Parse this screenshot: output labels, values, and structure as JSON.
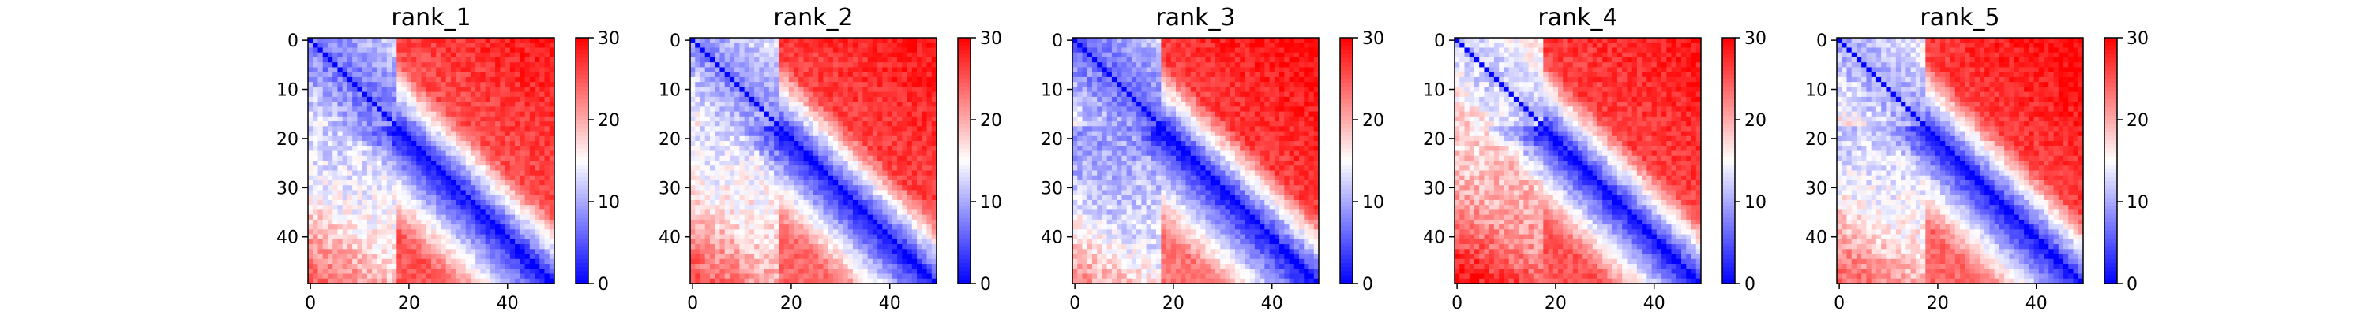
{
  "chart_data": [
    {
      "type": "heatmap",
      "title": "rank_1",
      "matrix_size": 50,
      "x_ticks": [
        0,
        20,
        40
      ],
      "y_ticks": [
        0,
        10,
        20,
        30,
        40
      ],
      "colorbar": {
        "ticks": [
          0,
          10,
          20,
          30
        ],
        "vmin": 0,
        "vmax": 30,
        "cmap": "bwr"
      },
      "block_boundary": 18,
      "values": {
        "diagonal": 0,
        "near_diag_slope": 1.15,
        "nterm_block_upper": 6.5,
        "upper_far": 24,
        "upper_far_max": 29,
        "lower_near": 12,
        "lower_far": 25
      }
    },
    {
      "type": "heatmap",
      "title": "rank_2",
      "matrix_size": 50,
      "x_ticks": [
        0,
        20,
        40
      ],
      "y_ticks": [
        0,
        10,
        20,
        30,
        40
      ],
      "colorbar": {
        "ticks": [
          0,
          10,
          20,
          30
        ],
        "vmin": 0,
        "vmax": 30,
        "cmap": "bwr"
      },
      "block_boundary": 18,
      "values": {
        "diagonal": 0,
        "near_diag_slope": 1.2,
        "nterm_block_upper": 8,
        "upper_far": 25,
        "upper_far_max": 29,
        "lower_near": 13,
        "lower_far": 24
      }
    },
    {
      "type": "heatmap",
      "title": "rank_3",
      "matrix_size": 50,
      "x_ticks": [
        0,
        20,
        40
      ],
      "y_ticks": [
        0,
        10,
        20,
        30,
        40
      ],
      "colorbar": {
        "ticks": [
          0,
          10,
          20,
          30
        ],
        "vmin": 0,
        "vmax": 30,
        "cmap": "bwr"
      },
      "block_boundary": 18,
      "values": {
        "diagonal": 0,
        "near_diag_slope": 1.1,
        "nterm_block_upper": 6,
        "upper_far": 25,
        "upper_far_max": 30,
        "lower_near": 9,
        "lower_far": 23
      }
    },
    {
      "type": "heatmap",
      "title": "rank_4",
      "matrix_size": 50,
      "x_ticks": [
        0,
        20,
        40
      ],
      "y_ticks": [
        0,
        10,
        20,
        30,
        40
      ],
      "colorbar": {
        "ticks": [
          0,
          10,
          20,
          30
        ],
        "vmin": 0,
        "vmax": 30,
        "cmap": "bwr"
      },
      "block_boundary": 18,
      "values": {
        "diagonal": 0,
        "near_diag_slope": 1.3,
        "nterm_block_upper": 11,
        "upper_far": 25,
        "upper_far_max": 29,
        "lower_near": 17,
        "lower_far": 25
      }
    },
    {
      "type": "heatmap",
      "title": "rank_5",
      "matrix_size": 50,
      "x_ticks": [
        0,
        20,
        40
      ],
      "y_ticks": [
        0,
        10,
        20,
        30,
        40
      ],
      "colorbar": {
        "ticks": [
          0,
          10,
          20,
          30
        ],
        "vmin": 0,
        "vmax": 30,
        "cmap": "bwr"
      },
      "block_boundary": 18,
      "values": {
        "diagonal": 0,
        "near_diag_slope": 1.2,
        "nterm_block_upper": 9,
        "upper_far": 25,
        "upper_far_max": 30,
        "lower_near": 12,
        "lower_far": 24
      }
    }
  ]
}
